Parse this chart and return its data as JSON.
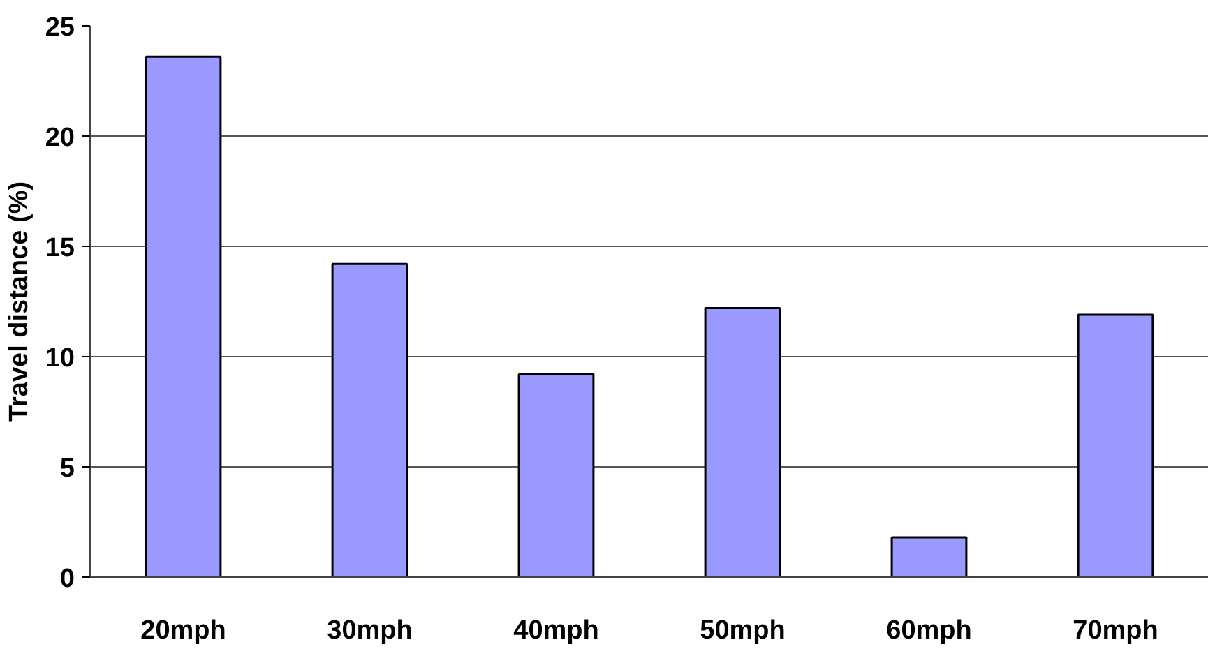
{
  "chart_data": {
    "type": "bar",
    "ylabel": "Travel distance (%)",
    "categories": [
      "20mph",
      "30mph",
      "40mph",
      "50mph",
      "60mph",
      "70mph"
    ],
    "values": [
      23.6,
      14.2,
      9.2,
      12.2,
      1.8,
      11.9
    ],
    "color": "#9999ff",
    "ylim": [
      0,
      25
    ],
    "yticks": [
      0,
      5,
      10,
      15,
      20,
      25
    ],
    "grid": "y"
  }
}
